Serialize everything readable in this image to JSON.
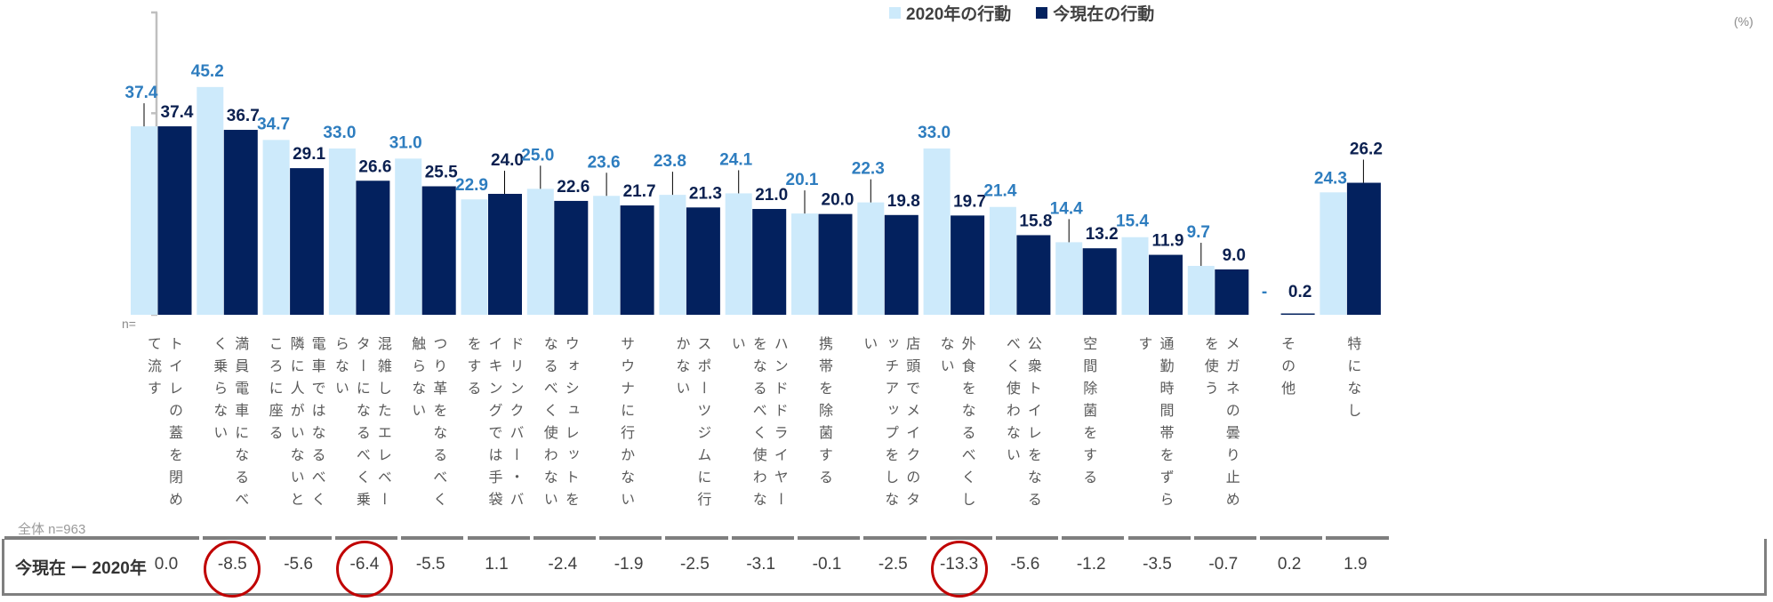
{
  "chart_data": {
    "type": "bar",
    "title": "",
    "xlabel": "",
    "ylabel": "",
    "unit": "(%)",
    "ylim": [
      0,
      60
    ],
    "y_ticks": [
      0,
      20,
      40,
      60
    ],
    "grid": false,
    "legend_position": "top-center",
    "n_label": "n=",
    "total_label": "全体 n=963",
    "categories": [
      "トイレの蓋を閉めて流す",
      "満員電車になるべく乗らない",
      "電車ではなるべく隣に人がいないところに座る",
      "混雑したエレベーターになるべく乗らない",
      "つり革をなるべく触らない",
      "ドリンクバー・バイキングでは手袋をする",
      "ウォシュレットをなるべく使わない",
      "サウナに行かない",
      "スポーツジムに行かない",
      "ハンドドライヤーをなるべく使わない",
      "携帯を除菌する",
      "店頭でメイクのタッチアップをしない",
      "外食をなるべくしない",
      "公衆トイレをなるべく使わない",
      "空間除菌をする",
      "通勤時間帯をずらす",
      "メガネの曇り止めを使う",
      "その他",
      "特になし"
    ],
    "series": [
      {
        "name": "2020年の行動",
        "color": "#cdeafb",
        "label_color": "#2e7dbf",
        "values": [
          37.4,
          45.2,
          34.7,
          33.0,
          31.0,
          22.9,
          25.0,
          23.6,
          23.8,
          24.1,
          20.1,
          22.3,
          33.0,
          21.4,
          14.4,
          15.4,
          9.7,
          null,
          24.3
        ],
        "labels": [
          "37.4",
          "45.2",
          "34.7",
          "33.0",
          "31.0",
          "22.9",
          "25.0",
          "23.6",
          "23.8",
          "24.1",
          "20.1",
          "22.3",
          "33.0",
          "21.4",
          "14.4",
          "15.4",
          "9.7",
          "-",
          "24.3"
        ]
      },
      {
        "name": "今現在の行動",
        "color": "#03215e",
        "label_color": "#0b2050",
        "values": [
          37.4,
          36.7,
          29.1,
          26.6,
          25.5,
          24.0,
          22.6,
          21.7,
          21.3,
          21.0,
          20.0,
          19.8,
          19.7,
          15.8,
          13.2,
          11.9,
          9.0,
          0.2,
          26.2
        ],
        "labels": [
          "37.4",
          "36.7",
          "29.1",
          "26.6",
          "25.5",
          "24.0",
          "22.6",
          "21.7",
          "21.3",
          "21.0",
          "20.0",
          "19.8",
          "19.7",
          "15.8",
          "13.2",
          "11.9",
          "9.0",
          "0.2",
          "26.2"
        ]
      }
    ],
    "difference_row": {
      "title": "今現在 ー 2020年",
      "values": [
        "0.0",
        "-8.5",
        "-5.6",
        "-6.4",
        "-5.5",
        "1.1",
        "-2.4",
        "-1.9",
        "-2.5",
        "-3.1",
        "-0.1",
        "-2.5",
        "-13.3",
        "-5.6",
        "-1.2",
        "-3.5",
        "-0.7",
        "0.2",
        "1.9"
      ],
      "highlighted_indices": [
        1,
        3,
        12
      ],
      "highlight_color": "#c00000"
    }
  }
}
